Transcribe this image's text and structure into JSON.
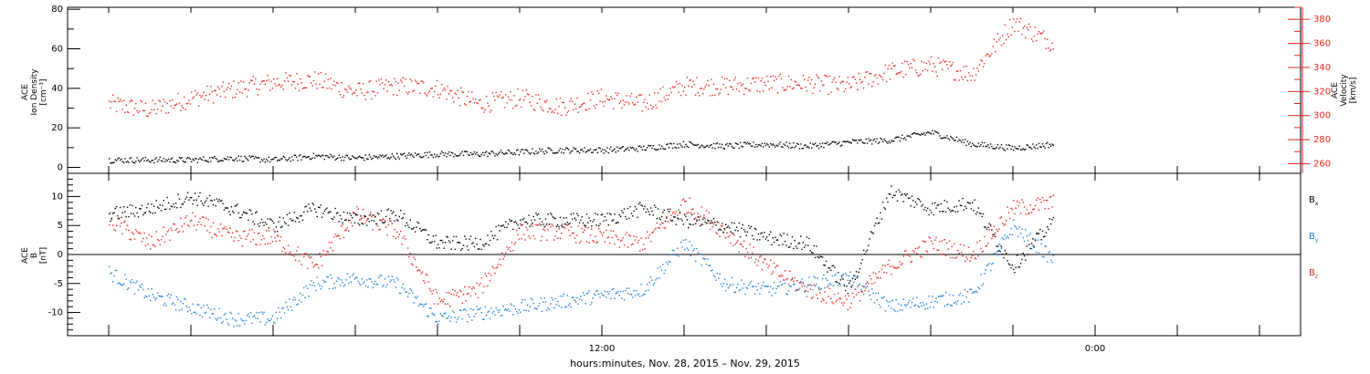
{
  "colors": {
    "black": "#000000",
    "red": "#e8261e",
    "blue": "#1c7fd6"
  },
  "chart_data": [
    {
      "type": "scatter",
      "panel": "ace-plasma",
      "x_axis": {
        "tick_labels": [
          {
            "hour": 12,
            "label": "12:00"
          },
          {
            "hour": 24,
            "label": "0:00"
          }
        ],
        "range_hours": [
          -1,
          29
        ]
      },
      "y_left": {
        "label": [
          "ACE",
          "Ion Density",
          "[cm⁻³]"
        ],
        "ylim": [
          -3,
          81
        ],
        "tick_labels": [
          "0",
          "20",
          "40",
          "60",
          "80"
        ]
      },
      "y_right": {
        "label": [
          "ACE",
          "Velocity",
          "[km/s]"
        ],
        "ylim": [
          252,
          390
        ],
        "tick_labels": [
          "260",
          "280",
          "300",
          "320",
          "340",
          "360",
          "380"
        ]
      },
      "series": [
        {
          "color_key": "black",
          "axis": "left",
          "x": [
            0,
            1,
            2,
            3,
            4,
            5,
            6,
            7,
            8,
            9,
            10,
            11,
            12,
            13,
            14,
            15,
            16,
            17,
            18,
            19,
            20,
            21,
            22,
            23
          ],
          "y": [
            4,
            4,
            4,
            5,
            4,
            6,
            5,
            6,
            7,
            7,
            8,
            9,
            9,
            10,
            12,
            11,
            12,
            11,
            13,
            14,
            18,
            12,
            10,
            12
          ]
        },
        {
          "color_key": "red",
          "axis": "right",
          "x": [
            0,
            1,
            2,
            3,
            4,
            5,
            6,
            7,
            8,
            9,
            10,
            11,
            12,
            13,
            14,
            15,
            16,
            17,
            18,
            19,
            20,
            21,
            22,
            23
          ],
          "y": [
            310,
            305,
            315,
            322,
            328,
            330,
            320,
            325,
            323,
            310,
            315,
            308,
            315,
            310,
            325,
            325,
            327,
            327,
            325,
            337,
            342,
            335,
            378,
            360
          ]
        }
      ]
    },
    {
      "type": "scatter",
      "panel": "ace-mag",
      "y_left": {
        "label": [
          "ACE",
          "B",
          "[nT]"
        ],
        "ylim": [
          -14,
          14
        ],
        "tick_labels": [
          "-10",
          "-5",
          "0",
          "5",
          "10"
        ]
      },
      "zero_line": 0,
      "legend": [
        {
          "text": "B",
          "sub": "x",
          "color_key": "black"
        },
        {
          "text": "B",
          "sub": "y",
          "color_key": "blue"
        },
        {
          "text": "B",
          "sub": "z",
          "color_key": "red"
        }
      ],
      "series": [
        {
          "color_key": "black",
          "x": [
            0,
            1,
            2,
            3,
            4,
            5,
            6,
            7,
            8,
            9,
            10,
            11,
            12,
            13,
            14,
            15,
            16,
            17,
            18,
            19,
            20,
            21,
            22,
            23
          ],
          "y": [
            7,
            8,
            10,
            8,
            5,
            8,
            6,
            7,
            2,
            2,
            6,
            6,
            6,
            8,
            6,
            5,
            3,
            2,
            -6,
            11,
            8,
            9,
            -2,
            6
          ]
        },
        {
          "color_key": "blue",
          "x": [
            0,
            1,
            2,
            3,
            4,
            5,
            6,
            7,
            8,
            9,
            10,
            11,
            12,
            13,
            14,
            15,
            16,
            17,
            18,
            19,
            20,
            21,
            22,
            23
          ],
          "y": [
            -3,
            -7,
            -9,
            -11,
            -11,
            -5,
            -4,
            -5,
            -11,
            -10,
            -9,
            -8,
            -7,
            -6,
            2,
            -5,
            -6,
            -5,
            -4,
            -9,
            -8,
            -7,
            5,
            -1
          ]
        },
        {
          "color_key": "red",
          "x": [
            0,
            1,
            2,
            3,
            4,
            5,
            6,
            7,
            8,
            9,
            10,
            11,
            12,
            13,
            14,
            15,
            16,
            17,
            18,
            19,
            20,
            21,
            22,
            23
          ],
          "y": [
            6,
            2,
            6,
            3,
            3,
            -2,
            7,
            4,
            -8,
            -6,
            4,
            4,
            3,
            2,
            9,
            4,
            -2,
            -6,
            -8,
            -2,
            2,
            0,
            8,
            9
          ]
        }
      ]
    }
  ],
  "footer": {
    "x_axis_title": "hours:minutes, Nov. 28, 2015 – Nov. 29, 2015"
  }
}
